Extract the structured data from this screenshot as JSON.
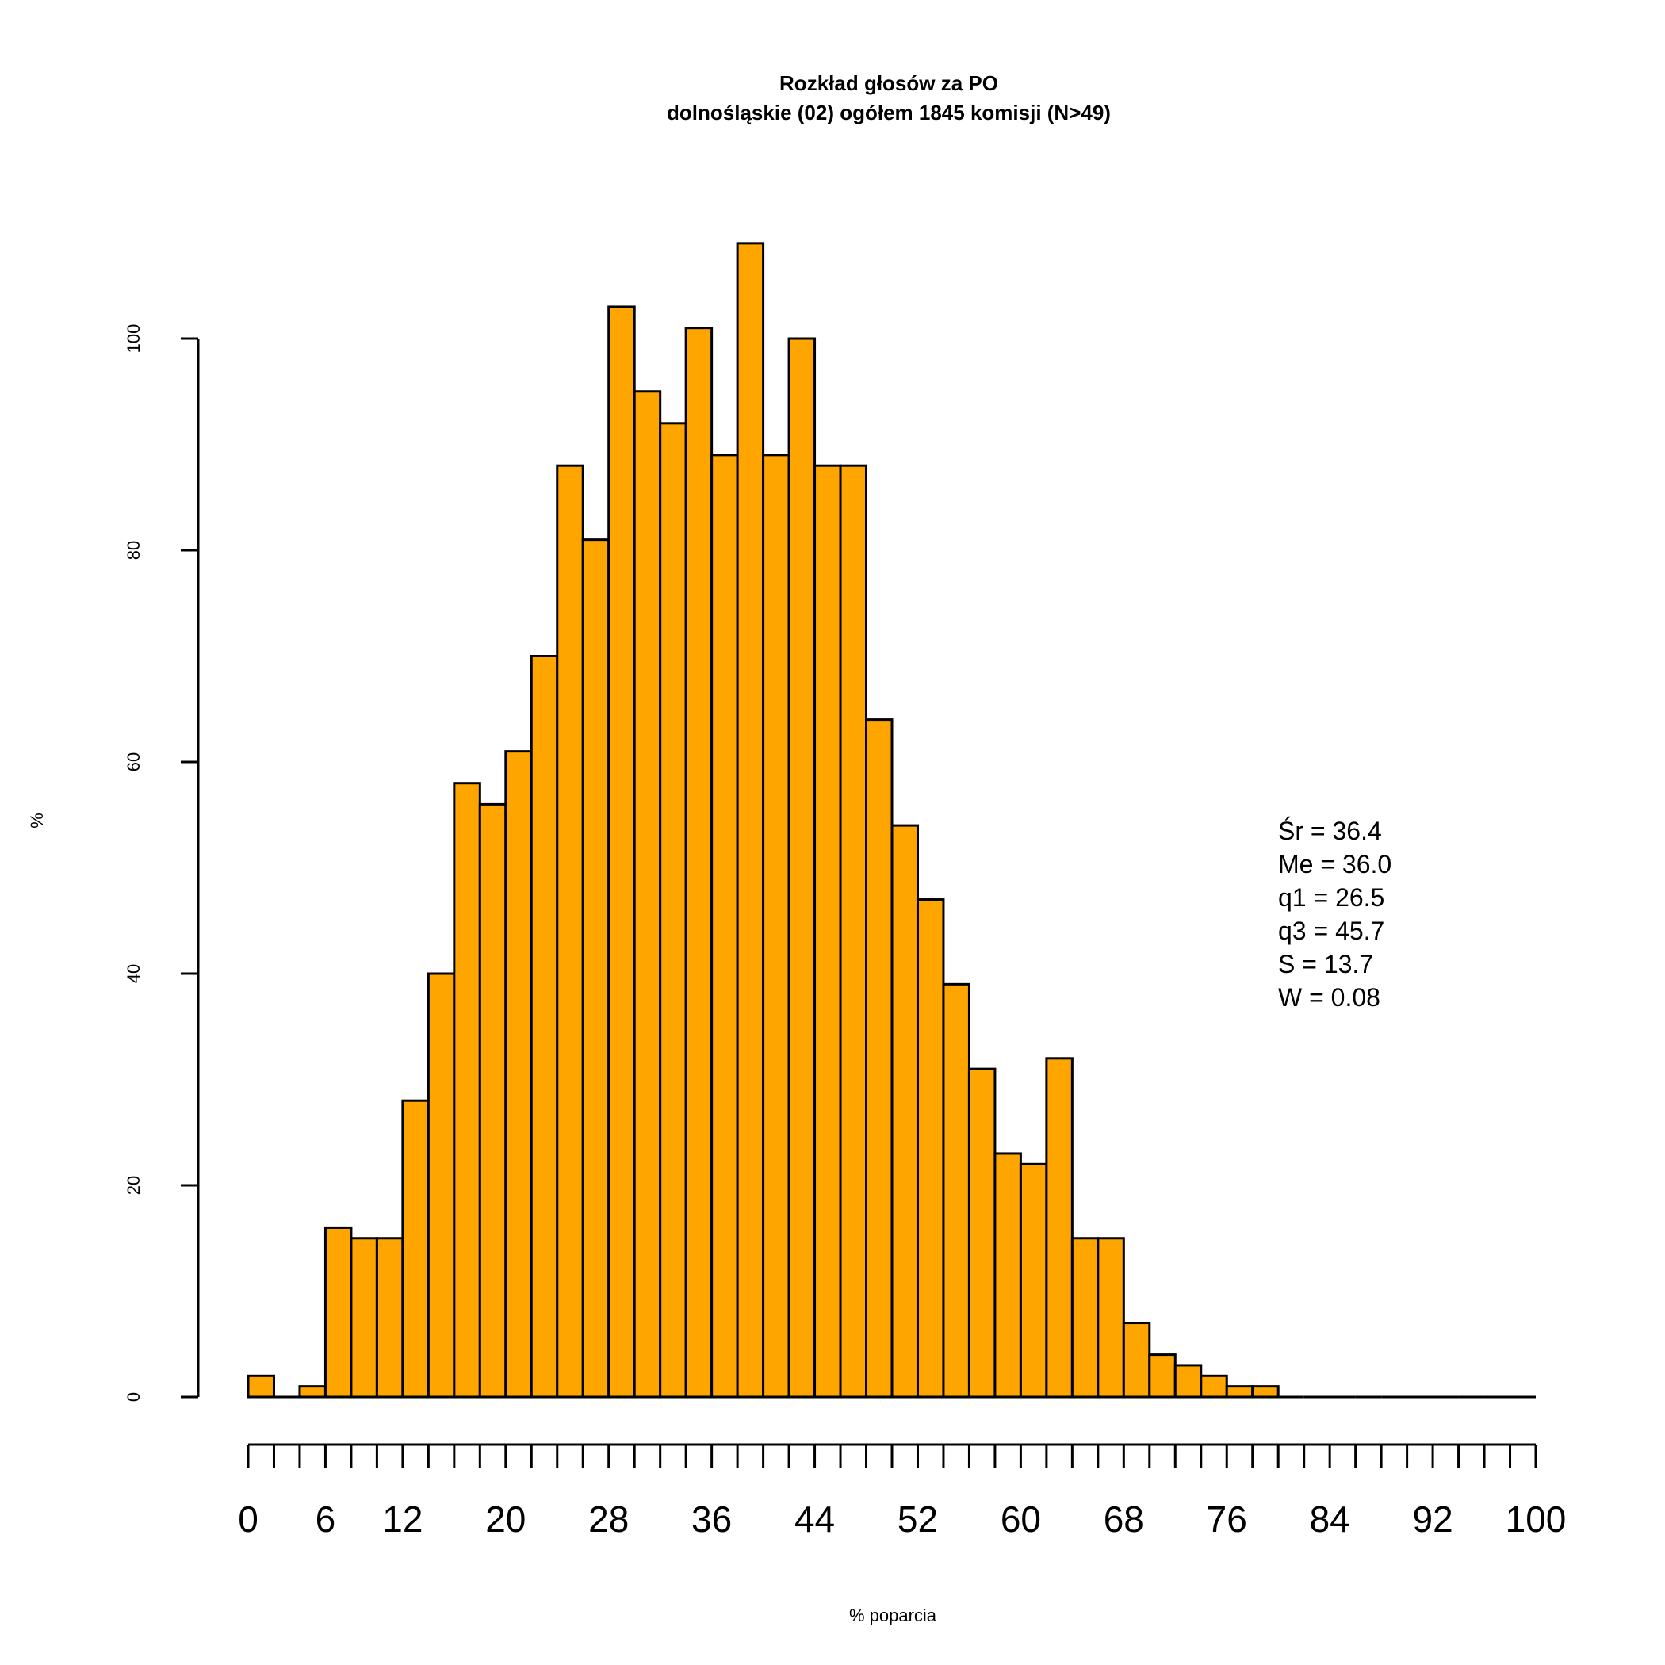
{
  "chart_data": {
    "type": "bar",
    "title": "Rozkład głosów za PO",
    "subtitle": "dolnośląskie (02) ogółem 1845 komisji (N>49)",
    "xlabel": "% poparcia",
    "ylabel": "%",
    "bin_width": 2,
    "bin_starts": [
      0,
      2,
      4,
      6,
      8,
      10,
      12,
      14,
      16,
      18,
      20,
      22,
      24,
      26,
      28,
      30,
      32,
      34,
      36,
      38,
      40,
      42,
      44,
      46,
      48,
      50,
      52,
      54,
      56,
      58,
      60,
      62,
      64,
      66,
      68,
      70,
      72,
      74,
      76,
      78,
      80,
      82,
      84,
      86,
      88,
      90,
      92,
      94,
      96,
      98
    ],
    "values": [
      2,
      0,
      1,
      16,
      15,
      15,
      28,
      40,
      58,
      56,
      61,
      70,
      88,
      81,
      103,
      95,
      92,
      101,
      89,
      109,
      89,
      100,
      88,
      88,
      64,
      54,
      47,
      39,
      31,
      23,
      22,
      32,
      15,
      15,
      7,
      4,
      3,
      2,
      1,
      1,
      0,
      0,
      0,
      0,
      0,
      0,
      0,
      0,
      0,
      0
    ],
    "xlim": [
      0,
      100
    ],
    "ylim": [
      0,
      110
    ],
    "yticks": [
      "0",
      "20",
      "40",
      "60",
      "80",
      "100"
    ],
    "xticks": [
      "0",
      "6",
      "12",
      "20",
      "28",
      "36",
      "44",
      "52",
      "60",
      "68",
      "76",
      "84",
      "92",
      "100"
    ],
    "bar_color": "#FFA500",
    "grid": false,
    "annotations": [
      "Śr = 36.4",
      "Me = 36.0",
      "q1 = 26.5",
      "q3 = 45.7",
      "S = 13.7",
      "W = 0.08"
    ]
  }
}
